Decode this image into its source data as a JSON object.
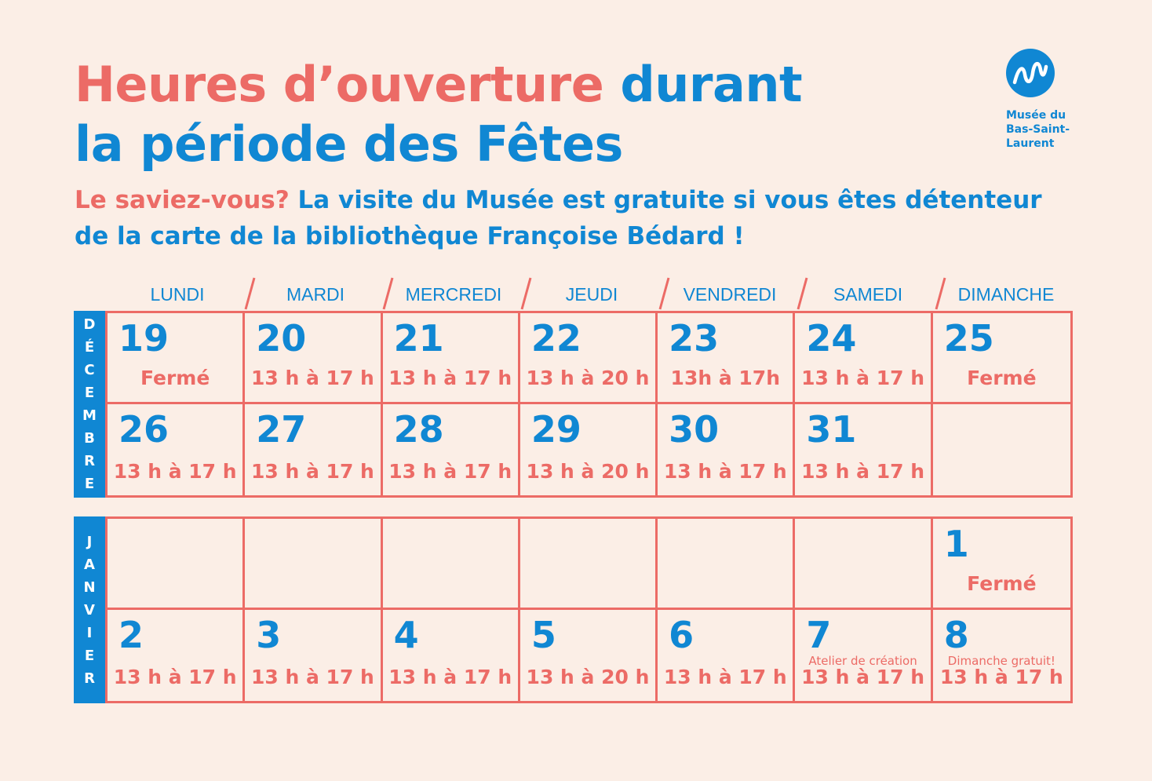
{
  "title": {
    "part1": "Heures d’ouverture",
    "part2": "durant",
    "line2": "la période des Fêtes"
  },
  "subtitle": {
    "lead": "Le saviez-vous?",
    "line1": "La visite du Musée est gratuite si vous êtes détenteur",
    "line2": "de la carte de la bibliothèque Françoise Bédard !"
  },
  "logo": {
    "line1": "Musée du",
    "line2": "Bas-Saint-",
    "line3": "Laurent",
    "icon": "museum-logo-icon"
  },
  "days": [
    "LUNDI",
    "MARDI",
    "MERCREDI",
    "JEUDI",
    "VENDREDI",
    "SAMEDI",
    "DIMANCHE"
  ],
  "colors": {
    "coral": "#EC6B66",
    "blue": "#1087D3",
    "background": "#FBEEE6"
  },
  "months": [
    {
      "label": "DÉCEMBRE",
      "weeks": [
        [
          {
            "day": "19",
            "hours": "Fermé"
          },
          {
            "day": "20",
            "hours": "13 h à 17 h"
          },
          {
            "day": "21",
            "hours": "13 h à 17 h"
          },
          {
            "day": "22",
            "hours": "13 h à 20 h"
          },
          {
            "day": "23",
            "hours": "13h à 17h"
          },
          {
            "day": "24",
            "hours": "13 h à 17 h"
          },
          {
            "day": "25",
            "hours": "Fermé"
          }
        ],
        [
          {
            "day": "26",
            "hours": "13 h à 17 h"
          },
          {
            "day": "27",
            "hours": "13 h à 17 h"
          },
          {
            "day": "28",
            "hours": "13 h à 17 h"
          },
          {
            "day": "29",
            "hours": "13 h à 20 h"
          },
          {
            "day": "30",
            "hours": "13 h à 17 h"
          },
          {
            "day": "31",
            "hours": "13 h à 17 h"
          },
          {
            "day": "",
            "hours": ""
          }
        ]
      ]
    },
    {
      "label": "JANVIER",
      "weeks": [
        [
          {
            "day": "",
            "hours": ""
          },
          {
            "day": "",
            "hours": ""
          },
          {
            "day": "",
            "hours": ""
          },
          {
            "day": "",
            "hours": ""
          },
          {
            "day": "",
            "hours": ""
          },
          {
            "day": "",
            "hours": ""
          },
          {
            "day": "1",
            "hours": "Fermé"
          }
        ],
        [
          {
            "day": "2",
            "hours": "13 h à 17 h"
          },
          {
            "day": "3",
            "hours": "13 h à 17 h"
          },
          {
            "day": "4",
            "hours": "13 h à 17 h"
          },
          {
            "day": "5",
            "hours": "13 h à 20 h"
          },
          {
            "day": "6",
            "hours": "13 h à 17 h"
          },
          {
            "day": "7",
            "hours": "13 h à 17 h",
            "note": "Atelier de création"
          },
          {
            "day": "8",
            "hours": "13 h à 17 h",
            "note": "Dimanche gratuit!"
          }
        ]
      ]
    }
  ]
}
